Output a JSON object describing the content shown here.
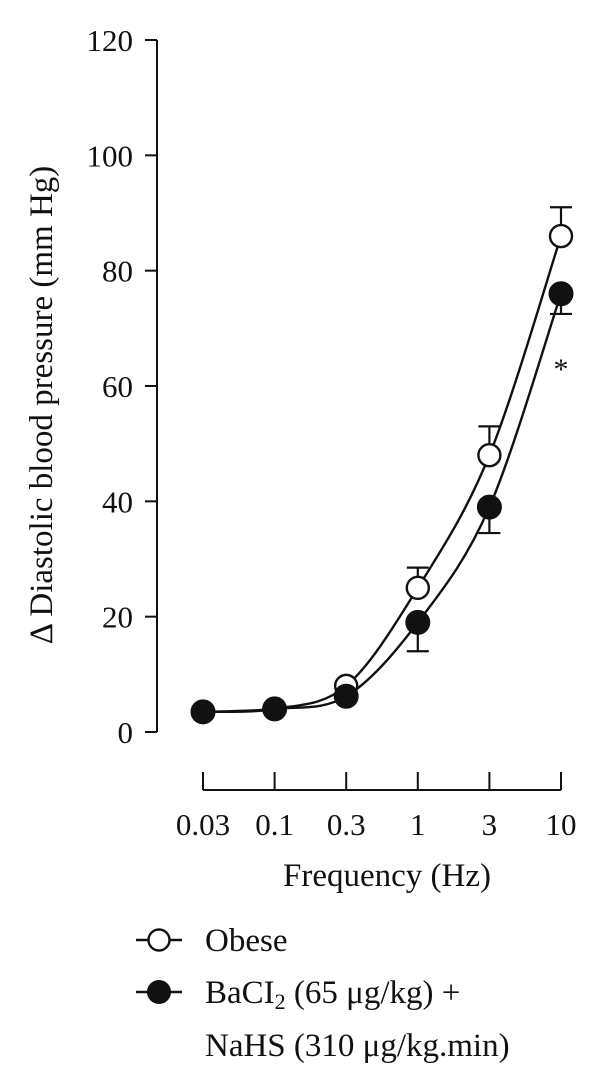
{
  "chart_data": {
    "type": "line",
    "title": "",
    "xlabel": "Frequency (Hz)",
    "ylabel": "Δ Diastolic blood pressure (mm Hg)",
    "x": [
      "0.03",
      "0.1",
      "0.3",
      "1",
      "3",
      "10"
    ],
    "ylim": [
      0,
      120
    ],
    "yticks": [
      0,
      20,
      40,
      60,
      80,
      100,
      120
    ],
    "xscale": "categorical (log-spaced frequencies)",
    "grid": false,
    "legend_position": "bottom",
    "series": [
      {
        "name": "Obese",
        "marker": "open-circle",
        "values": [
          3.5,
          4,
          8,
          25,
          48,
          86
        ],
        "error_upper": [
          0,
          0,
          0,
          3.5,
          5,
          5
        ]
      },
      {
        "name": "BaCI2 (65 μg/kg) + NaHS (310 μg/kg.min)",
        "marker": "filled-circle",
        "values": [
          3.5,
          4,
          6.2,
          19,
          39,
          76
        ],
        "error_lower": [
          0,
          0,
          0,
          5,
          4.5,
          3.5
        ]
      }
    ],
    "annotations": [
      {
        "text": "*",
        "x": "10",
        "y": 64
      }
    ]
  },
  "legend": {
    "obese_label": "Obese",
    "treatment_line1_prefix": "BaCI",
    "treatment_line1_subscript": "2",
    "treatment_line1_suffix": " (65 μg/kg) +",
    "treatment_line2": "NaHS (310 μg/kg.min)"
  },
  "colors": {
    "ink": "#111111",
    "background": "#ffffff"
  }
}
